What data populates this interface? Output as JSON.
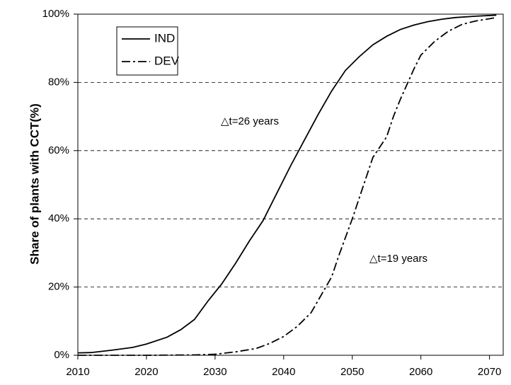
{
  "chart_data": {
    "type": "line",
    "ylabel": "Share of plants with CCT(%)",
    "xlim": [
      2010,
      2072
    ],
    "xticks": [
      2010,
      2020,
      2030,
      2040,
      2050,
      2060,
      2070
    ],
    "ylim": [
      0,
      100
    ],
    "yticks": [
      {
        "value": 0,
        "label": "0%"
      },
      {
        "value": 20,
        "label": "20%"
      },
      {
        "value": 40,
        "label": "40%"
      },
      {
        "value": 60,
        "label": "60%"
      },
      {
        "value": 80,
        "label": "80%"
      },
      {
        "value": 100,
        "label": "100%"
      }
    ],
    "grid": true,
    "legend": "upper left",
    "annotations": [
      "△t=26 years",
      "△t=19 years"
    ],
    "series": [
      {
        "name": "IND",
        "color": "#000000",
        "dash": "solid",
        "x": [
          2010,
          2012,
          2015,
          2018,
          2020,
          2023,
          2025,
          2027,
          2029,
          2031,
          2033,
          2035,
          2037,
          2039,
          2041,
          2043,
          2045,
          2047,
          2049,
          2051,
          2053,
          2055,
          2057,
          2059,
          2061,
          2063,
          2065,
          2068,
          2071
        ],
        "values": [
          0.7,
          0.8,
          1.5,
          2.3,
          3.3,
          5.3,
          7.5,
          10.5,
          16,
          21,
          27,
          33.5,
          39.5,
          47.5,
          55.5,
          63,
          70.5,
          77.5,
          83.5,
          87.5,
          91,
          93.5,
          95.5,
          96.8,
          97.8,
          98.5,
          99,
          99.4,
          99.7
        ]
      },
      {
        "name": "DEV",
        "color": "#000000",
        "dash": "dashdot",
        "x": [
          2010,
          2020,
          2027,
          2030,
          2033,
          2036,
          2038,
          2040,
          2042,
          2044,
          2046,
          2047,
          2048,
          2050,
          2051,
          2052,
          2053,
          2055,
          2056,
          2057,
          2059,
          2060,
          2062,
          2064,
          2066,
          2068,
          2071
        ],
        "values": [
          0,
          0,
          0.1,
          0.3,
          1,
          2,
          3.5,
          5.5,
          8.5,
          12.5,
          19.5,
          23,
          29,
          40,
          46,
          52,
          58,
          64,
          70,
          75,
          84,
          88,
          92,
          95,
          97,
          98,
          99
        ]
      }
    ]
  }
}
